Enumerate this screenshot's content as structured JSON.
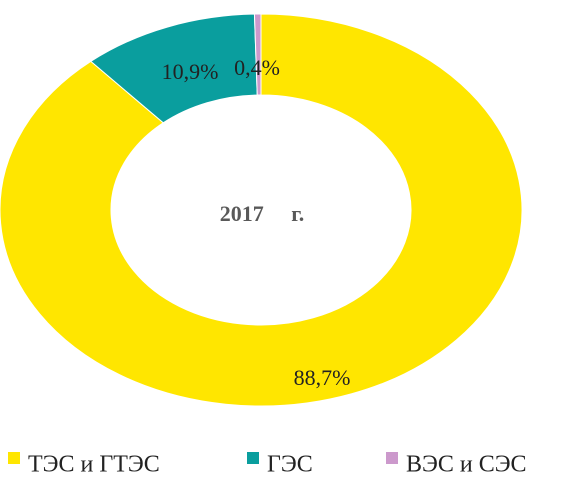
{
  "chart_data": {
    "type": "pie",
    "title": "2017     г.",
    "categories": [
      "ТЭС и ГТЭС",
      "ГЭС",
      "ВЭС и СЭС"
    ],
    "values": [
      88.7,
      10.9,
      0.4
    ],
    "value_labels": [
      "88,7%",
      "10,9%",
      "0,4%"
    ],
    "colors": [
      "#FFE600",
      "#0A9E9E",
      "#CC99CC"
    ],
    "legend": "bottom"
  }
}
